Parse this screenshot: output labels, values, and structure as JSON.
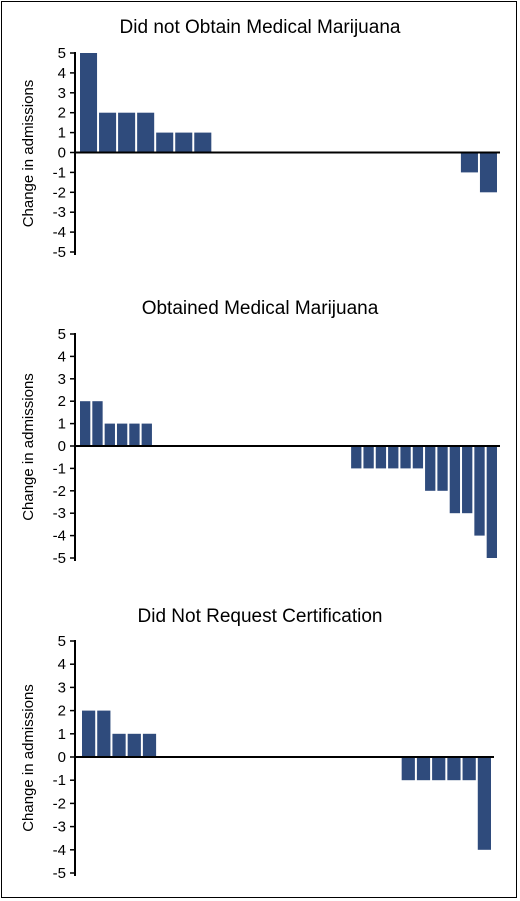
{
  "colors": {
    "bar": "#2f4b7c",
    "axis": "#000000",
    "background": "#ffffff"
  },
  "chart_data": [
    {
      "type": "bar",
      "title": "Did not Obtain Medical Marijuana",
      "ylabel": "Change in admissions",
      "ylim": [
        -5,
        5
      ],
      "yticks": [
        "5",
        "4",
        "3",
        "2",
        "1",
        "0",
        "-1",
        "-2",
        "-3",
        "-4",
        "-5"
      ],
      "values": [
        5,
        2,
        2,
        2,
        1,
        1,
        1,
        0,
        0,
        0,
        0,
        0,
        0,
        0,
        0,
        0,
        0,
        0,
        0,
        0,
        -1,
        -2
      ]
    },
    {
      "type": "bar",
      "title": "Obtained Medical Marijuana",
      "ylabel": "Change in admissions",
      "ylim": [
        -5,
        5
      ],
      "yticks": [
        "5",
        "4",
        "3",
        "2",
        "1",
        "0",
        "-1",
        "-2",
        "-3",
        "-4",
        "-5"
      ],
      "values": [
        2,
        2,
        1,
        1,
        1,
        1,
        0,
        0,
        0,
        0,
        0,
        0,
        0,
        0,
        0,
        0,
        0,
        0,
        0,
        0,
        0,
        0,
        -1,
        -1,
        -1,
        -1,
        -1,
        -1,
        -2,
        -2,
        -3,
        -3,
        -4,
        -5
      ]
    },
    {
      "type": "bar",
      "title": "Did Not Request Certification",
      "ylabel": "Change in admissions",
      "ylim": [
        -5,
        5
      ],
      "yticks": [
        "5",
        "4",
        "3",
        "2",
        "1",
        "0",
        "-1",
        "-2",
        "-3",
        "-4",
        "-5"
      ],
      "values": [
        2,
        2,
        1,
        1,
        1,
        0,
        0,
        0,
        0,
        0,
        0,
        0,
        0,
        0,
        0,
        0,
        0,
        0,
        0,
        0,
        0,
        -1,
        -1,
        -1,
        -1,
        -1,
        -4
      ]
    }
  ]
}
